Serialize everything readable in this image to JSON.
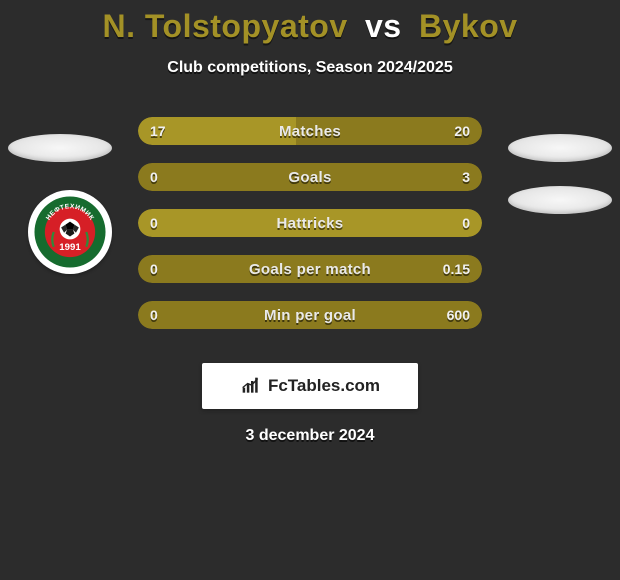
{
  "background_color": "#2c2c2c",
  "title": {
    "player1": "N. Tolstopyatov",
    "vs": "vs",
    "player2": "Bykov",
    "player1_color": "#a39126",
    "player2_color": "#a39126"
  },
  "subtitle": "Club competitions, Season 2024/2025",
  "bar_colors": {
    "player1": "#a89627",
    "player2": "#8b7a1e",
    "neutral": "#a89627"
  },
  "stats": [
    {
      "label": "Matches",
      "left_val": "17",
      "right_val": "20",
      "left_pct": 45.9,
      "right_pct": 54.1,
      "neutral": false
    },
    {
      "label": "Goals",
      "left_val": "0",
      "right_val": "3",
      "left_pct": 0,
      "right_pct": 100,
      "neutral": false
    },
    {
      "label": "Hattricks",
      "left_val": "0",
      "right_val": "0",
      "left_pct": 100,
      "right_pct": 0,
      "neutral": true
    },
    {
      "label": "Goals per match",
      "left_val": "0",
      "right_val": "0.15",
      "left_pct": 0,
      "right_pct": 100,
      "neutral": false
    },
    {
      "label": "Min per goal",
      "left_val": "0",
      "right_val": "600",
      "left_pct": 0,
      "right_pct": 100,
      "neutral": false
    }
  ],
  "club_logo": {
    "top_text": "НЕФТЕХИМИК",
    "year": "1991",
    "outer_color": "#166b2e",
    "inner_color": "#d61f26",
    "text_color": "#ffffff"
  },
  "branding": "FcTables.com",
  "date": "3 december 2024"
}
